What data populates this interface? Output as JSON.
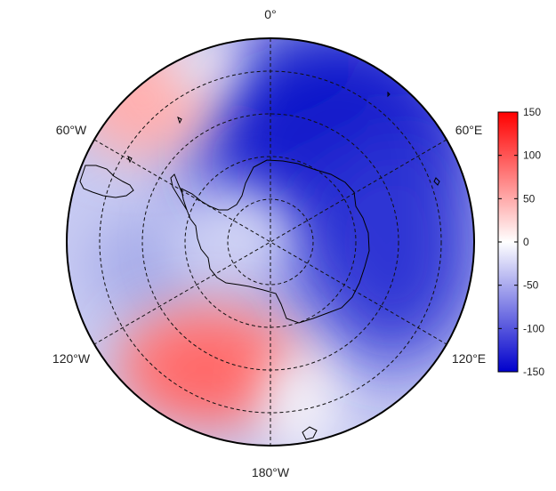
{
  "map": {
    "projection": "south-polar-stereographic",
    "longitude_labels": {
      "top": "0°",
      "upper_left": "60°W",
      "upper_right": "60°E",
      "lower_left": "120°W",
      "lower_right": "120°E",
      "bottom": "180°W"
    },
    "field_description_regions": [
      {
        "sector": "Pacific (120°W–180°)",
        "sign": "positive",
        "approx_value": 80
      },
      {
        "sector": "Atlantic/Weddell (30°W–60°W)",
        "sign": "positive",
        "approx_value": 40
      },
      {
        "sector": "Indian Ocean / East Antarctica (30°E–120°E)",
        "sign": "negative",
        "approx_value": -140
      },
      {
        "sector": "Antarctic interior",
        "sign": "negative",
        "approx_value": -30
      }
    ]
  },
  "colorbar": {
    "min": -150,
    "max": 150,
    "ticks": [
      "150",
      "100",
      "50",
      "0",
      "-50",
      "-100",
      "-150"
    ],
    "colors": {
      "negative": "#0000cc",
      "zero": "#ffffff",
      "positive": "#ff0000"
    }
  }
}
